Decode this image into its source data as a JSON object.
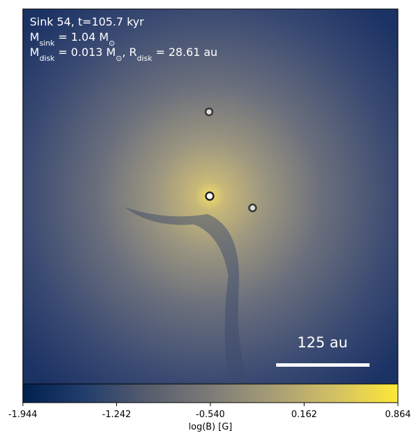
{
  "chart_data": {
    "type": "image",
    "annotations": [
      [
        {
          "text": "Sink 54, t=105.7 kyr"
        }
      ],
      [
        {
          "text": "M"
        },
        {
          "sub": "sink"
        },
        {
          "text": " = 1.04 M"
        },
        {
          "sub": "⊙"
        }
      ],
      [
        {
          "text": "M"
        },
        {
          "sub": "disk"
        },
        {
          "text": " = 0.013 M"
        },
        {
          "sub": "⊙"
        },
        {
          "text": ", R"
        },
        {
          "sub": "disk"
        },
        {
          "text": " = 28.61 au"
        }
      ]
    ],
    "scale_bar_label": "125 au",
    "colorbar": {
      "label": "log(B) [G]",
      "colormap": "cividis",
      "clim": [
        -1.944,
        0.864
      ],
      "ticks": [
        -1.944,
        -1.242,
        {
          "value": -0.54,
          "label": "-0.540"
        },
        0.162,
        0.864
      ]
    }
  }
}
